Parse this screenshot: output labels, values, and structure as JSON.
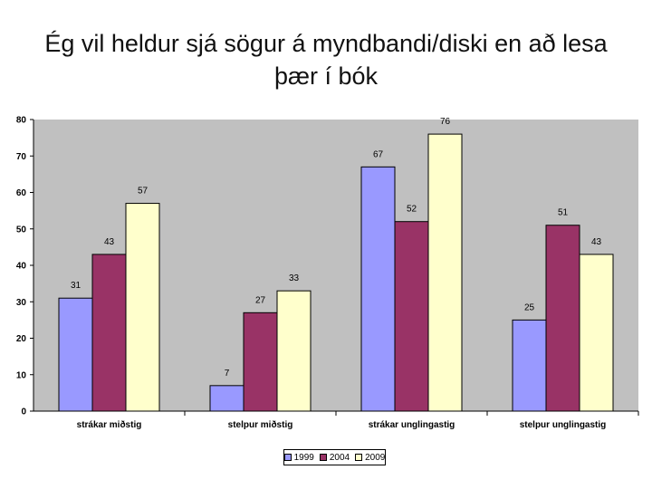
{
  "slide": {
    "title": "Ég vil heldur sjá sögur á myndbandi/diski en að lesa þær í bók"
  },
  "chart_data": {
    "type": "bar",
    "title": "Ég vil heldur sjá sögur á myndbandi/diski en að lesa þær í bók",
    "xlabel": "",
    "ylabel": "",
    "ylim": [
      0,
      80
    ],
    "yticks": [
      0,
      10,
      20,
      30,
      40,
      50,
      60,
      70,
      80
    ],
    "grid": false,
    "legend_position": "bottom",
    "categories": [
      "strákar miðstig",
      "stelpur miðstig",
      "strákar unglingastig",
      "stelpur unglingastig"
    ],
    "series": [
      {
        "name": "1999",
        "values": [
          31,
          7,
          67,
          25
        ],
        "color": "#9999ff"
      },
      {
        "name": "2004",
        "values": [
          43,
          27,
          52,
          51
        ],
        "color": "#993366"
      },
      {
        "name": "2009",
        "values": [
          57,
          33,
          76,
          43
        ],
        "color": "#ffffcc"
      }
    ],
    "plot_background": "#c0c0c0"
  }
}
